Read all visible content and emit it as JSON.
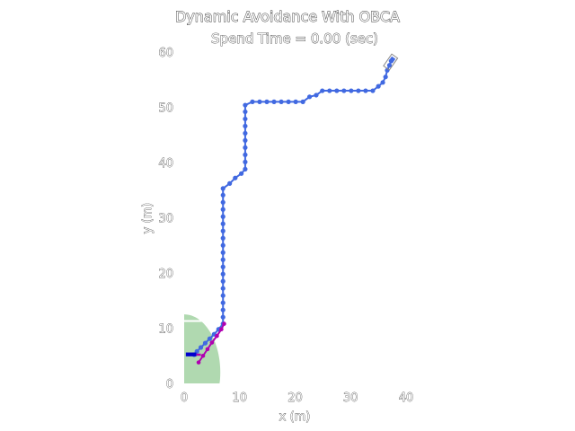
{
  "chart_data": {
    "type": "scatter",
    "title": "Dynamic Avoidance With OBCA",
    "subtitle": "Spend Time = 0.00 (sec)",
    "xlabel": "x (m)",
    "ylabel": "y (m)",
    "xlim": [
      0,
      40
    ],
    "ylim": [
      0,
      60
    ],
    "xticks": [
      0,
      10,
      20,
      30,
      40
    ],
    "yticks": [
      0,
      10,
      20,
      30,
      40,
      50,
      60
    ],
    "grid": false,
    "colors": {
      "path": "#4169e1",
      "predicted": "#b000b0",
      "safety_zone": "#8fc98f",
      "ego_vehicle": "#0000cc"
    },
    "series": [
      {
        "values": [
          [
            1.8,
            5.2
          ],
          [
            2.3,
            5.8
          ],
          [
            3.0,
            6.5
          ],
          [
            3.8,
            7.3
          ],
          [
            4.6,
            8.1
          ],
          [
            5.4,
            8.9
          ],
          [
            6.2,
            9.8
          ],
          [
            7.0,
            10.8
          ],
          [
            7.0,
            12.0
          ],
          [
            7.0,
            13.3
          ],
          [
            7.0,
            14.6
          ],
          [
            7.0,
            15.9
          ],
          [
            7.0,
            17.2
          ],
          [
            7.0,
            18.5
          ],
          [
            7.0,
            19.8
          ],
          [
            7.0,
            21.1
          ],
          [
            7.0,
            22.4
          ],
          [
            7.0,
            23.7
          ],
          [
            7.0,
            25.0
          ],
          [
            7.0,
            26.3
          ],
          [
            7.0,
            27.6
          ],
          [
            7.0,
            28.9
          ],
          [
            7.0,
            30.2
          ],
          [
            7.0,
            31.5
          ],
          [
            7.0,
            32.8
          ],
          [
            7.0,
            34.1
          ],
          [
            7.0,
            35.3
          ],
          [
            8.2,
            36.2
          ],
          [
            9.2,
            37.2
          ],
          [
            10.3,
            38.0
          ],
          [
            11.0,
            38.8
          ],
          [
            11.0,
            40.1
          ],
          [
            11.0,
            41.4
          ],
          [
            11.0,
            42.7
          ],
          [
            11.0,
            44.0
          ],
          [
            11.0,
            45.3
          ],
          [
            11.0,
            46.6
          ],
          [
            11.0,
            47.9
          ],
          [
            11.0,
            49.2
          ],
          [
            11.0,
            50.4
          ],
          [
            12.3,
            51.0
          ],
          [
            13.6,
            51.0
          ],
          [
            14.9,
            51.0
          ],
          [
            16.2,
            51.0
          ],
          [
            17.5,
            51.0
          ],
          [
            18.8,
            51.0
          ],
          [
            20.1,
            51.0
          ],
          [
            21.4,
            51.0
          ],
          [
            22.6,
            51.9
          ],
          [
            23.8,
            52.2
          ],
          [
            24.9,
            53.0
          ],
          [
            26.2,
            53.0
          ],
          [
            27.5,
            53.0
          ],
          [
            28.8,
            53.0
          ],
          [
            30.1,
            53.0
          ],
          [
            31.4,
            53.0
          ],
          [
            32.7,
            53.0
          ],
          [
            34.0,
            53.0
          ],
          [
            35.0,
            53.8
          ],
          [
            35.8,
            54.5
          ],
          [
            36.3,
            55.5
          ],
          [
            36.6,
            56.7
          ],
          [
            37.0,
            57.6
          ],
          [
            37.3,
            58.4
          ]
        ]
      },
      {
        "values": [
          [
            2.6,
            3.8
          ],
          [
            3.4,
            5.0
          ],
          [
            4.2,
            6.2
          ],
          [
            5.0,
            7.4
          ],
          [
            5.9,
            8.6
          ],
          [
            6.7,
            9.8
          ],
          [
            7.2,
            10.8
          ]
        ]
      }
    ]
  }
}
